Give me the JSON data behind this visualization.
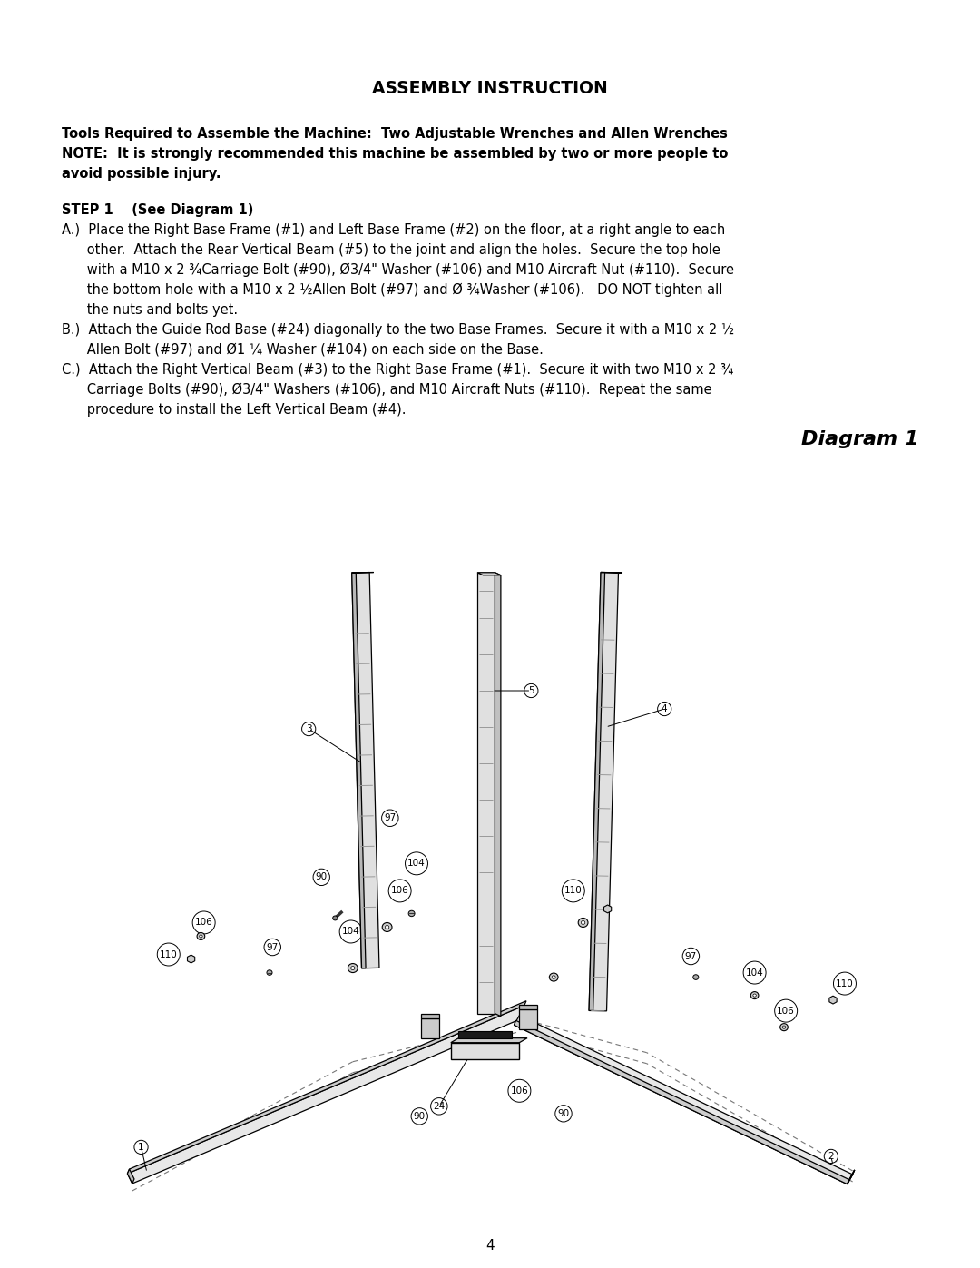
{
  "title": "ASSEMBLY INSTRUCTION",
  "tools_line1": "Tools Required to Assemble the Machine:  Two Adjustable Wrenches and Allen Wrenches",
  "tools_line2": "NOTE:  It is strongly recommended this machine be assembled by two or more people to",
  "tools_line3": "avoid possible injury.",
  "step_header": "STEP 1    (See Diagram 1)",
  "step_a_line1": "A.)  Place the Right Base Frame (#1) and Left Base Frame (#2) on the floor, at a right angle to each",
  "step_a_line2": "      other.  Attach the Rear Vertical Beam (#5) to the joint and align the holes.  Secure the top hole",
  "step_a_line3": "      with a M10 x 2 ¾Carriage Bolt (#90), Ø3/4\" Washer (#106) and M10 Aircraft Nut (#110).  Secure",
  "step_a_line4": "      the bottom hole with a M10 x 2 ½Allen Bolt (#97) and Ø ¾Washer (#106).   DO NOT tighten all",
  "step_a_line5": "      the nuts and bolts yet.",
  "step_b_line1": "B.)  Attach the Guide Rod Base (#24) diagonally to the two Base Frames.  Secure it with a M10 x 2 ½",
  "step_b_line2": "      Allen Bolt (#97) and Ø1 ¼ Washer (#104) on each side on the Base.",
  "step_c_line1": "C.)  Attach the Right Vertical Beam (#3) to the Right Base Frame (#1).  Secure it with two M10 x 2 ¾",
  "step_c_line2": "      Carriage Bolts (#90), Ø3/4\" Washers (#106), and M10 Aircraft Nuts (#110).  Repeat the same",
  "step_c_line3": "      procedure to install the Left Vertical Beam (#4).",
  "diagram_label": "Diagram 1",
  "page_number": "4",
  "bg_color": "#ffffff",
  "text_color": "#000000",
  "body_fs": 10.5,
  "bold_fs": 10.5,
  "title_fs": 13.5
}
